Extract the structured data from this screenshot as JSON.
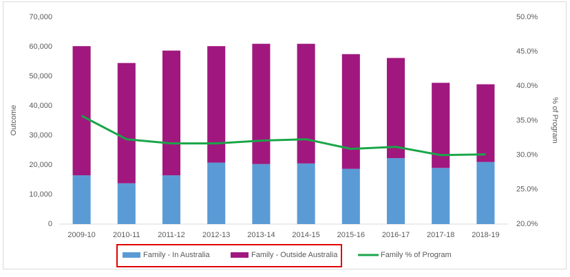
{
  "chart_data": {
    "type": "bar-line",
    "categories": [
      "2009-10",
      "2010-11",
      "2011-12",
      "2012-13",
      "2013-14",
      "2014-15",
      "2015-16",
      "2016-17",
      "2017-18",
      "2018-19"
    ],
    "series": [
      {
        "name": "Family - In Australia",
        "color": "#5b9bd5",
        "kind": "bar",
        "values": [
          16500,
          13800,
          16500,
          20800,
          20300,
          20500,
          18700,
          22300,
          19000,
          21000
        ]
      },
      {
        "name": "Family - Outside Australia",
        "color": "#a0187e",
        "kind": "bar",
        "values": [
          43700,
          40700,
          42200,
          39400,
          40700,
          40500,
          38800,
          33900,
          28800,
          26300
        ]
      },
      {
        "name": "Family % of Program",
        "color": "#1aa548",
        "kind": "line",
        "axis": "y2",
        "values": [
          35.7,
          32.3,
          31.7,
          31.7,
          32.1,
          32.3,
          30.9,
          31.2,
          30.0,
          30.1
        ]
      }
    ],
    "y_label": "Outcome",
    "y2_label": "% of Program",
    "ylim": [
      0,
      70000
    ],
    "yticks": [
      0,
      {
        "value": 10000,
        "label": "10,000"
      },
      {
        "value": 20000,
        "label": "20,000"
      },
      {
        "value": 30000,
        "label": "30,000"
      },
      {
        "value": 40000,
        "label": "40,000"
      },
      {
        "value": 50000,
        "label": "50,000"
      },
      {
        "value": 60000,
        "label": "60,000"
      },
      {
        "value": 70000,
        "label": "70,000"
      }
    ],
    "y2lim": [
      20,
      50
    ],
    "y2ticks": [
      {
        "value": 20,
        "label": "20.0%"
      },
      {
        "value": 25,
        "label": "25.0%"
      },
      {
        "value": 30,
        "label": "30.0%"
      },
      {
        "value": 35,
        "label": "35.0%"
      },
      {
        "value": 40,
        "label": "40.0%"
      },
      {
        "value": 45,
        "label": "45.0%"
      },
      {
        "value": 50,
        "label": "50.0%"
      }
    ],
    "legend": "bottom"
  }
}
